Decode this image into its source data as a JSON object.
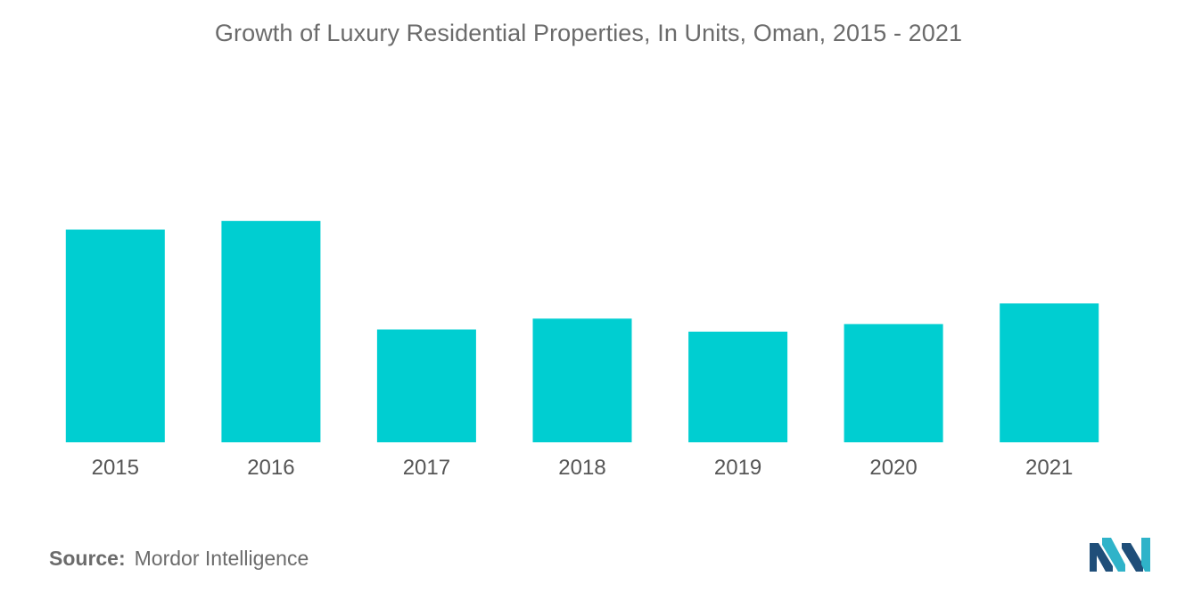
{
  "chart_data": {
    "type": "bar",
    "title": "Growth of Luxury Residential Properties, In Units, Oman, 2015 - 2021",
    "categories": [
      "2015",
      "2016",
      "2017",
      "2018",
      "2019",
      "2020",
      "2021"
    ],
    "values": [
      98,
      102,
      52,
      57,
      51,
      54.5,
      64
    ],
    "ylim": [
      0,
      150
    ],
    "xlabel": "",
    "ylabel": "",
    "grid": false,
    "legend": "none",
    "bar_color": "#00ced1"
  },
  "source": {
    "label": "Source:",
    "text": "Mordor Intelligence"
  },
  "logo": {
    "icon": "mordor-intelligence-logo-icon",
    "colors": [
      "#1f4e79",
      "#2fb3c9"
    ]
  }
}
